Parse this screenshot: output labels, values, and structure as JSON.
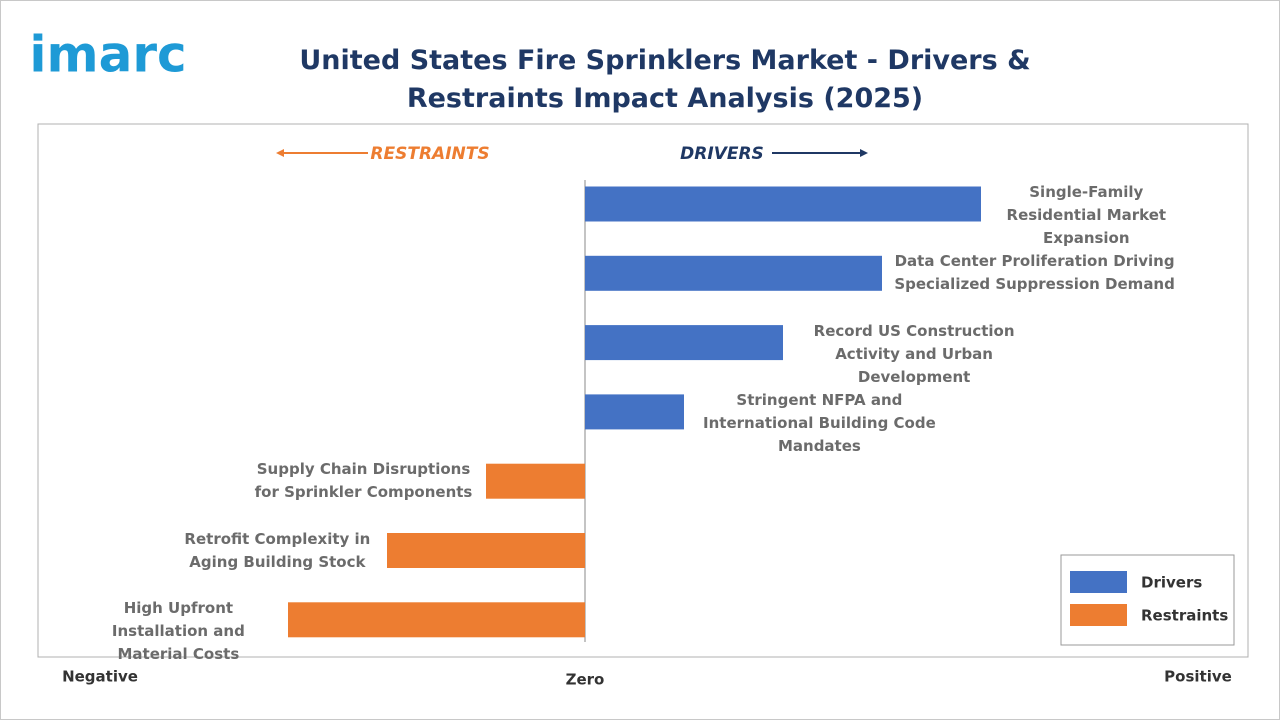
{
  "logo": "imarc",
  "chart_data": {
    "type": "diverging-bar",
    "title": "United States Fire Sprinklers Market - Drivers & Restraints Impact Analysis (2025)",
    "annotations": {
      "left": "RESTRAINTS",
      "right": "DRIVERS"
    },
    "x_axis_labels": {
      "left": "Negative",
      "center": "Zero",
      "right": "Positive"
    },
    "categories": [
      "Single-Family Residential Market Expansion",
      "Data Center Proliferation Driving Specialized Suppression Demand",
      "Record US Construction Activity and Urban Development",
      "Stringent NFPA and International Building Code Mandates",
      "Supply Chain Disruptions for Sprinkler Components",
      "Retrofit Complexity in Aging Building Stock",
      "High Upfront Installation and Material Costs"
    ],
    "series": [
      {
        "name": "Drivers",
        "color": "#4472c4",
        "values": [
          4,
          3,
          2,
          1,
          null,
          null,
          null
        ]
      },
      {
        "name": "Restraints",
        "color": "#ed7d31",
        "values": [
          null,
          null,
          null,
          null,
          -1,
          -2,
          -3
        ]
      }
    ]
  }
}
